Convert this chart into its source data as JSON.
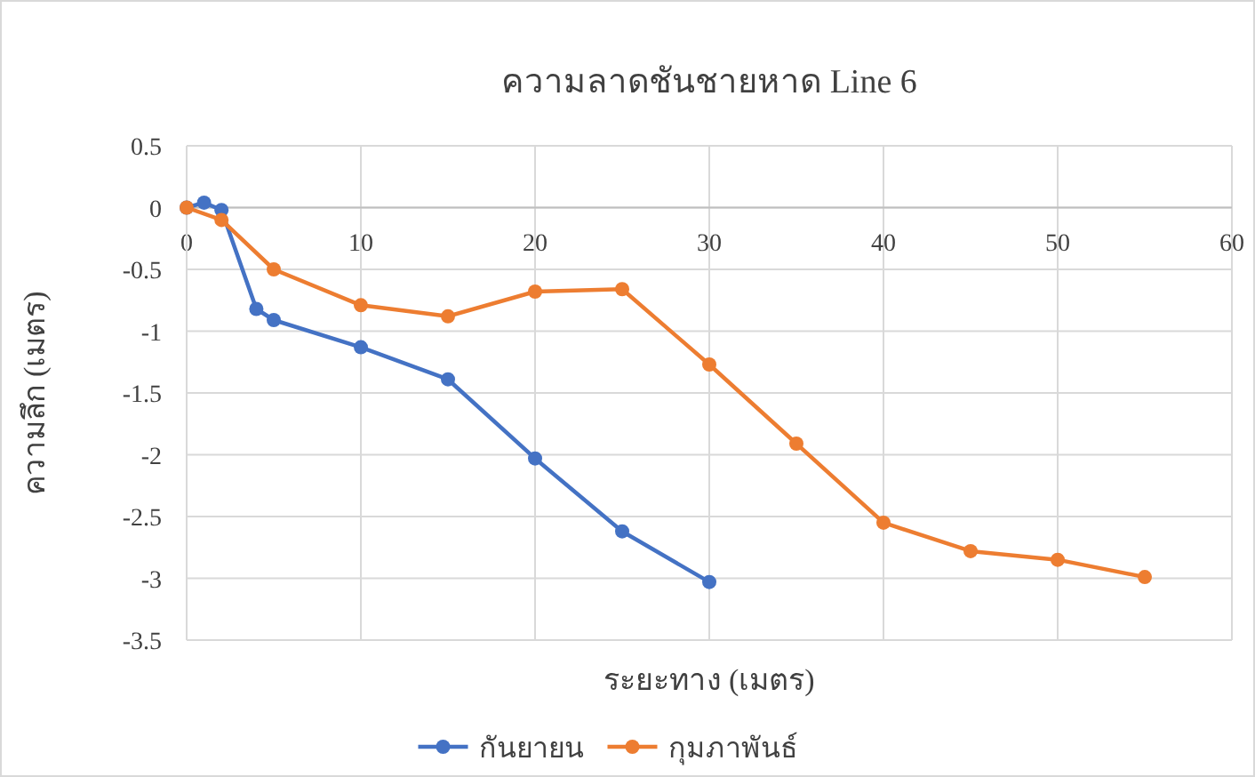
{
  "chart_data": {
    "type": "line",
    "title": "ความลาดชันชายหาด Line 6",
    "xlabel": "ระยะทาง (เมตร)",
    "ylabel": "ความลึก (เมตร)",
    "xlim": [
      0,
      60
    ],
    "xticks": [
      0,
      10,
      20,
      30,
      40,
      50,
      60
    ],
    "ylim": [
      -3.5,
      0.5
    ],
    "yticks": [
      -3.5,
      -3,
      -2.5,
      -2,
      -1.5,
      -1,
      -0.5,
      0,
      0.5
    ],
    "grid": true,
    "legend": "bottom",
    "marker": "circle",
    "line_style": "solid",
    "series": [
      {
        "name": "กันยายน",
        "color": "#4472c4",
        "x": [
          0,
          1,
          2,
          4,
          5,
          10,
          15,
          20,
          25,
          30
        ],
        "values": [
          0,
          0.04,
          -0.02,
          -0.82,
          -0.91,
          -1.13,
          -1.39,
          -2.03,
          -2.62,
          -3.03
        ]
      },
      {
        "name": "กุมภาพันธ์",
        "color": "#ed7d31",
        "x": [
          0,
          2,
          5,
          10,
          15,
          20,
          25,
          30,
          35,
          40,
          45,
          50,
          55
        ],
        "values": [
          0,
          -0.1,
          -0.5,
          -0.79,
          -0.88,
          -0.68,
          -0.66,
          -1.27,
          -1.91,
          -2.55,
          -2.78,
          -2.85,
          -2.99
        ]
      }
    ]
  }
}
